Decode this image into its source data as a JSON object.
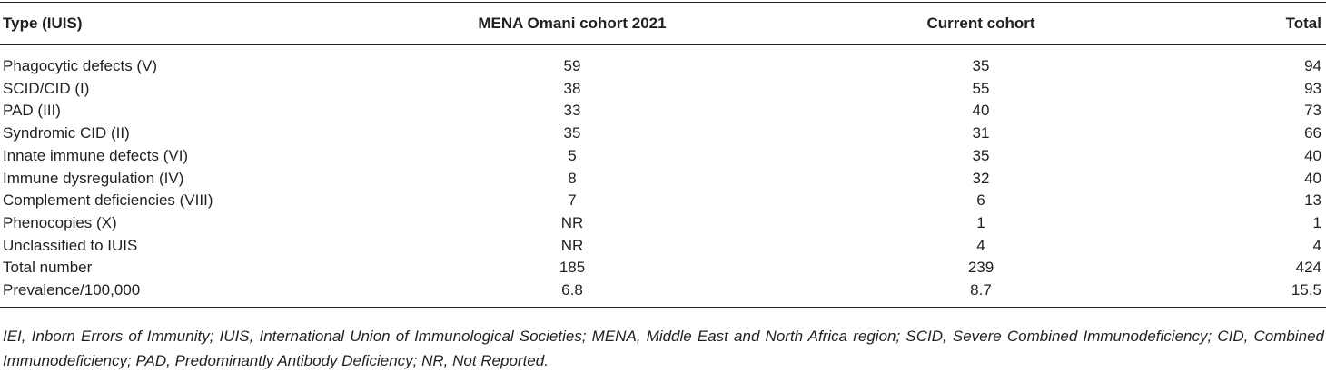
{
  "table": {
    "header": [
      "Type (IUIS)",
      "MENA Omani cohort 2021",
      "Current cohort",
      "Total"
    ],
    "rows": [
      [
        "Phagocytic defects (V)",
        59,
        35,
        94
      ],
      [
        "SCID/CID (I)",
        38,
        55,
        93
      ],
      [
        "PAD (III)",
        33,
        40,
        73
      ],
      [
        "Syndromic CID (II)",
        35,
        31,
        66
      ],
      [
        "Innate immune defects (VI)",
        5,
        35,
        40
      ],
      [
        "Immune dysregulation (IV)",
        8,
        32,
        40
      ],
      [
        "Complement deficiencies (VIII)",
        7,
        6,
        13
      ],
      [
        "Phenocopies (X)",
        "NR",
        1,
        1
      ],
      [
        "Unclassified to IUIS",
        "NR",
        4,
        4
      ],
      [
        "Total number",
        185,
        239,
        424
      ],
      [
        "Prevalence/100,000",
        6.8,
        8.7,
        15.5
      ]
    ]
  },
  "footnote": "IEI, Inborn Errors of Immunity; IUIS, International Union of Immunological Societies; MENA, Middle East and North Africa region; SCID, Severe Combined Immunodeficiency; CID, Combined Immunodeficiency; PAD, Predominantly Antibody Deficiency; NR, Not Reported."
}
